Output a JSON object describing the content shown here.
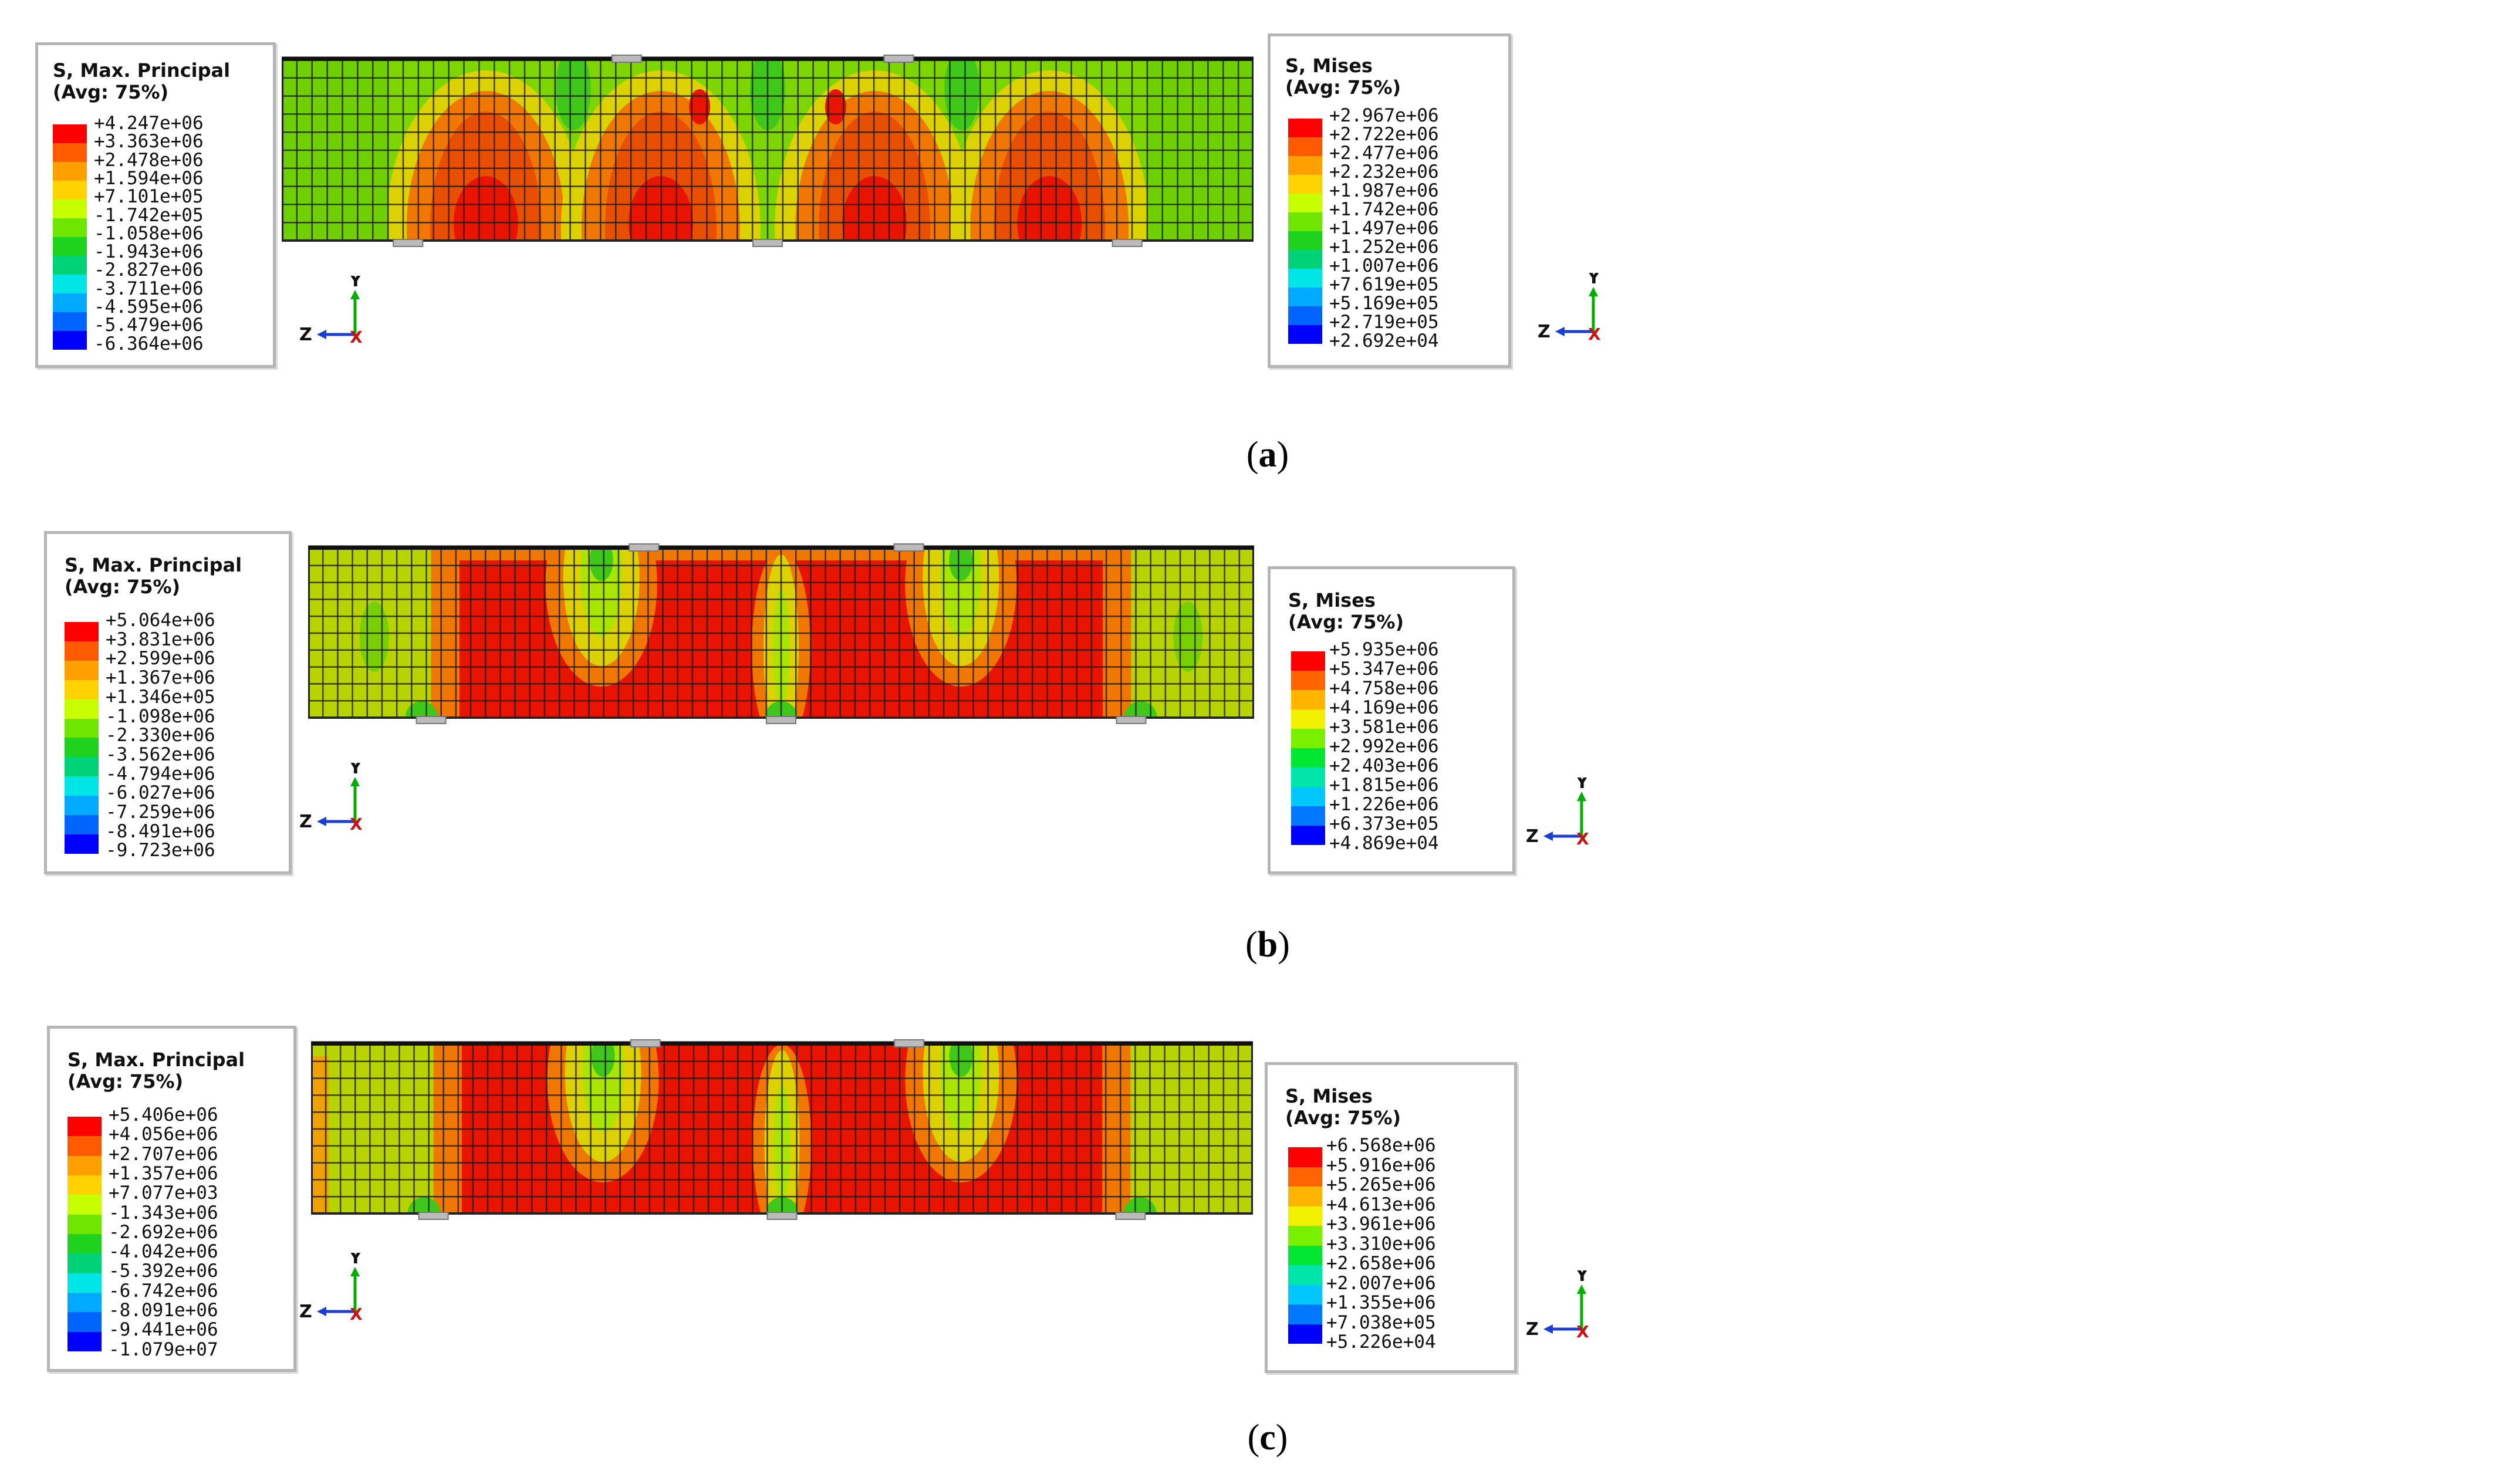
{
  "panels": [
    {
      "caption": "a",
      "max_principal": {
        "title1": "S, Max. Principal",
        "title2": "(Avg: 75%)",
        "values": [
          "+4.247e+06",
          "+3.363e+06",
          "+2.478e+06",
          "+1.594e+06",
          "+7.101e+05",
          "-1.742e+05",
          "-1.058e+06",
          "-1.943e+06",
          "-2.827e+06",
          "-3.711e+06",
          "-4.595e+06",
          "-5.479e+06",
          "-6.364e+06"
        ]
      },
      "mises": {
        "title1": "S, Mises",
        "title2": "(Avg: 75%)",
        "values": [
          "+2.967e+06",
          "+2.722e+06",
          "+2.477e+06",
          "+2.232e+06",
          "+1.987e+06",
          "+1.742e+06",
          "+1.497e+06",
          "+1.252e+06",
          "+1.007e+06",
          "+7.619e+05",
          "+5.169e+05",
          "+2.719e+05",
          "+2.692e+04"
        ]
      }
    },
    {
      "caption": "b",
      "max_principal": {
        "title1": "S, Max. Principal",
        "title2": "(Avg: 75%)",
        "values": [
          "+5.064e+06",
          "+3.831e+06",
          "+2.599e+06",
          "+1.367e+06",
          "+1.346e+05",
          "-1.098e+06",
          "-2.330e+06",
          "-3.562e+06",
          "-4.794e+06",
          "-6.027e+06",
          "-7.259e+06",
          "-8.491e+06",
          "-9.723e+06"
        ]
      },
      "mises": {
        "title1": "S, Mises",
        "title2": "(Avg: 75%)",
        "values": [
          "+5.935e+06",
          "+5.347e+06",
          "+4.758e+06",
          "+4.169e+06",
          "+3.581e+06",
          "+2.992e+06",
          "+2.403e+06",
          "+1.815e+06",
          "+1.226e+06",
          "+6.373e+05",
          "+4.869e+04"
        ]
      }
    },
    {
      "caption": "c",
      "max_principal": {
        "title1": "S, Max. Principal",
        "title2": "(Avg: 75%)",
        "values": [
          "+5.406e+06",
          "+4.056e+06",
          "+2.707e+06",
          "+1.357e+06",
          "+7.077e+03",
          "-1.343e+06",
          "-2.692e+06",
          "-4.042e+06",
          "-5.392e+06",
          "-6.742e+06",
          "-8.091e+06",
          "-9.441e+06",
          "-1.079e+07"
        ]
      },
      "mises": {
        "title1": "S, Mises",
        "title2": "(Avg: 75%)",
        "values": [
          "+6.568e+06",
          "+5.916e+06",
          "+5.265e+06",
          "+4.613e+06",
          "+3.961e+06",
          "+3.310e+06",
          "+2.658e+06",
          "+2.007e+06",
          "+1.355e+06",
          "+7.038e+05",
          "+5.226e+04"
        ]
      }
    }
  ],
  "axis_labels": {
    "y": "Y",
    "z": "Z",
    "x": "X"
  },
  "colors": {
    "contour_12": [
      "#ff0000",
      "#ff5a00",
      "#ffa000",
      "#ffd200",
      "#c8ff00",
      "#6ee600",
      "#1ed21e",
      "#00d278",
      "#00e6e6",
      "#00aaff",
      "#0064ff",
      "#0000ff"
    ],
    "contour_10": [
      "#ff0000",
      "#ff6400",
      "#ffb400",
      "#f0f000",
      "#78f000",
      "#00e632",
      "#00e6aa",
      "#00c8ff",
      "#0078ff",
      "#0000ff"
    ],
    "mesh_line": "#1a1a1a",
    "axis_y": "#00b000",
    "axis_z": "#1a3fd6",
    "axis_x": "#d01010"
  }
}
